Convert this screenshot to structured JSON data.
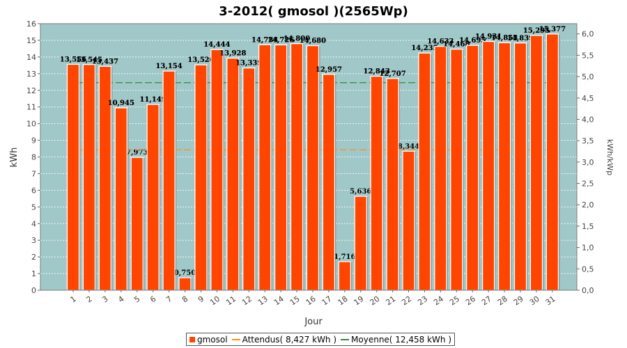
{
  "chart_data": {
    "type": "bar",
    "title": "3-2012( gmosol )(2565Wp)",
    "xlabel": "Jour",
    "ylabel": "kWh",
    "y2label": "kWh/kWp",
    "ylim": [
      0,
      16
    ],
    "y2lim": [
      0,
      6.24
    ],
    "categories": [
      "1",
      "2",
      "3",
      "4",
      "5",
      "6",
      "7",
      "8",
      "9",
      "10",
      "11",
      "12",
      "13",
      "14",
      "15",
      "16",
      "17",
      "18",
      "19",
      "20",
      "21",
      "22",
      "23",
      "24",
      "25",
      "26",
      "27",
      "28",
      "29",
      "30",
      "31"
    ],
    "series": [
      {
        "name": "gmosol",
        "values": [
          13.556,
          13.545,
          13.437,
          10.945,
          7.973,
          11.149,
          13.154,
          0.75,
          13.526,
          14.444,
          13.928,
          13.339,
          14.734,
          14.726,
          14.8,
          14.68,
          12.957,
          1.716,
          5.636,
          12.843,
          12.707,
          8.344,
          14.235,
          14.633,
          14.468,
          14.695,
          14.931,
          14.853,
          14.839,
          15.295,
          15.377
        ],
        "labels": [
          "13,556",
          "13,545",
          "13,437",
          "10,945",
          "7,973",
          "11,149",
          "13,154",
          "0,750",
          "13,526",
          "14,444",
          "13,928",
          "13,339",
          "14,734",
          "14,726",
          "14,800",
          "14,680",
          "12,957",
          "1,716",
          "5,636",
          "12,843",
          "12,707",
          "8,344",
          "14,235",
          "14,633",
          "14,468",
          "14,695",
          "14,931",
          "14,853",
          "14,839",
          "15,295",
          "15,377"
        ],
        "color": "#ff4500"
      }
    ],
    "lines": [
      {
        "name": "Attendus",
        "value": 8.427,
        "color": "#ff8c1a"
      },
      {
        "name": "Moyenne",
        "value": 12.458,
        "color": "#2e8b2e"
      }
    ],
    "yticks": [
      "0",
      "1",
      "2",
      "3",
      "4",
      "5",
      "6",
      "7",
      "8",
      "9",
      "10",
      "11",
      "12",
      "13",
      "14",
      "15",
      "16"
    ],
    "y2ticks": [
      {
        "value": 0.0,
        "label": "0,0"
      },
      {
        "value": 0.5,
        "label": "0,5"
      },
      {
        "value": 1.0,
        "label": "1,0"
      },
      {
        "value": 1.5,
        "label": "1,5"
      },
      {
        "value": 2.0,
        "label": "2,0"
      },
      {
        "value": 2.5,
        "label": "2,5"
      },
      {
        "value": 3.0,
        "label": "3,0"
      },
      {
        "value": 3.5,
        "label": "3,5"
      },
      {
        "value": 4.0,
        "label": "4,0"
      },
      {
        "value": 4.5,
        "label": "4,5"
      },
      {
        "value": 5.0,
        "label": "5,0"
      },
      {
        "value": 5.5,
        "label": "5,5"
      },
      {
        "value": 6.0,
        "label": "6,0"
      }
    ],
    "grid": true,
    "legend_position": "bottom",
    "plot_background": "#a0c8c8"
  },
  "legend": {
    "gmosol": "gmosol",
    "attendus": "Attendus( 8,427 kWh )",
    "moyenne": "Moyenne( 12,458 kWh )"
  }
}
